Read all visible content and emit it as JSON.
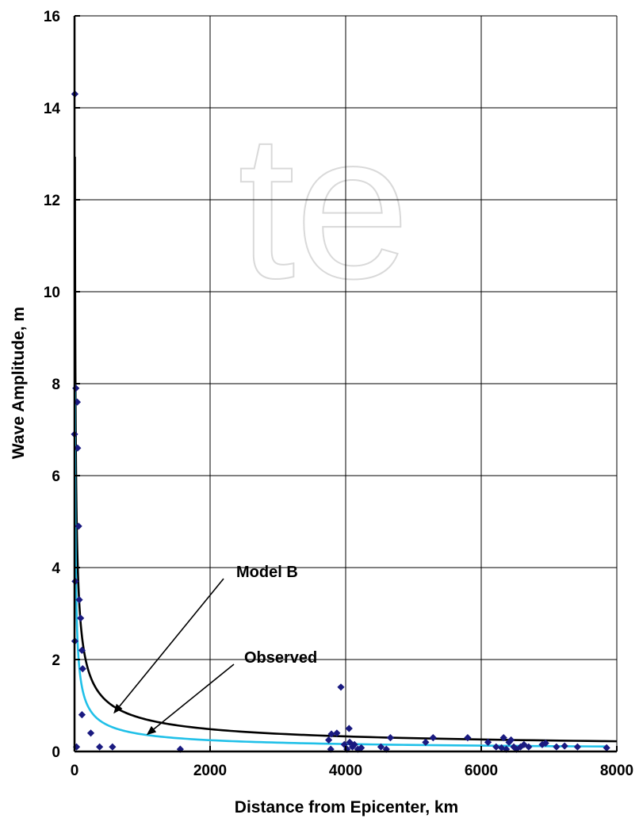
{
  "chart_data": {
    "type": "scatter",
    "watermark": "te",
    "xlabel": "Distance from Epicenter, km",
    "ylabel": "Wave Amplitude, m",
    "xlim": [
      0,
      8000
    ],
    "ylim": [
      0,
      16
    ],
    "x_ticks": [
      0,
      2000,
      4000,
      6000,
      8000
    ],
    "y_ticks": [
      0,
      2,
      4,
      6,
      8,
      10,
      12,
      14,
      16
    ],
    "grid": true,
    "colors": {
      "points": "#1a1a80",
      "model_b": "#000000",
      "observed": "#20c0e8"
    },
    "points": [
      {
        "x": 5,
        "y": 14.3
      },
      {
        "x": 20,
        "y": 7.9
      },
      {
        "x": 40,
        "y": 7.6
      },
      {
        "x": 45,
        "y": 6.6
      },
      {
        "x": 0,
        "y": 6.9
      },
      {
        "x": 60,
        "y": 4.9
      },
      {
        "x": 10,
        "y": 3.7
      },
      {
        "x": 70,
        "y": 3.3
      },
      {
        "x": 90,
        "y": 2.9
      },
      {
        "x": 110,
        "y": 2.2
      },
      {
        "x": 5,
        "y": 2.4
      },
      {
        "x": 120,
        "y": 1.8
      },
      {
        "x": 110,
        "y": 0.8
      },
      {
        "x": 240,
        "y": 0.4
      },
      {
        "x": 30,
        "y": 0.1
      },
      {
        "x": 370,
        "y": 0.1
      },
      {
        "x": 560,
        "y": 0.1
      },
      {
        "x": 1560,
        "y": 0.05
      },
      {
        "x": 3750,
        "y": 0.25
      },
      {
        "x": 3790,
        "y": 0.38
      },
      {
        "x": 3870,
        "y": 0.4
      },
      {
        "x": 3930,
        "y": 1.4
      },
      {
        "x": 4050,
        "y": 0.5
      },
      {
        "x": 3780,
        "y": 0.05
      },
      {
        "x": 3980,
        "y": 0.15
      },
      {
        "x": 4020,
        "y": 0.05
      },
      {
        "x": 4060,
        "y": 0.2
      },
      {
        "x": 4100,
        "y": 0.1
      },
      {
        "x": 4130,
        "y": 0.15
      },
      {
        "x": 4180,
        "y": 0.05
      },
      {
        "x": 4230,
        "y": 0.08
      },
      {
        "x": 4520,
        "y": 0.1
      },
      {
        "x": 4600,
        "y": 0.05
      },
      {
        "x": 4660,
        "y": 0.3
      },
      {
        "x": 5180,
        "y": 0.2
      },
      {
        "x": 5290,
        "y": 0.3
      },
      {
        "x": 5800,
        "y": 0.3
      },
      {
        "x": 6100,
        "y": 0.2
      },
      {
        "x": 6220,
        "y": 0.1
      },
      {
        "x": 6300,
        "y": 0.08
      },
      {
        "x": 6330,
        "y": 0.3
      },
      {
        "x": 6370,
        "y": 0.05
      },
      {
        "x": 6410,
        "y": 0.2
      },
      {
        "x": 6440,
        "y": 0.25
      },
      {
        "x": 6480,
        "y": 0.1
      },
      {
        "x": 6520,
        "y": 0.05
      },
      {
        "x": 6580,
        "y": 0.1
      },
      {
        "x": 6630,
        "y": 0.15
      },
      {
        "x": 6700,
        "y": 0.1
      },
      {
        "x": 6900,
        "y": 0.15
      },
      {
        "x": 6950,
        "y": 0.18
      },
      {
        "x": 7110,
        "y": 0.1
      },
      {
        "x": 7230,
        "y": 0.12
      },
      {
        "x": 7420,
        "y": 0.1
      },
      {
        "x": 7850,
        "y": 0.08
      }
    ],
    "series": [
      {
        "name": "Model B",
        "formula": "y = 35.6 * x^-0.565",
        "x_min": 6,
        "x_max": 8000
      },
      {
        "name": "Observed",
        "formula": "y = 23.5 * x^-0.6",
        "x_min": 6,
        "x_max": 7850
      }
    ],
    "annotations": [
      {
        "text": "Model B",
        "target": {
          "x": 590,
          "y": 0.85
        }
      },
      {
        "text": "Observed",
        "target": {
          "x": 1080,
          "y": 0.38
        }
      }
    ]
  }
}
